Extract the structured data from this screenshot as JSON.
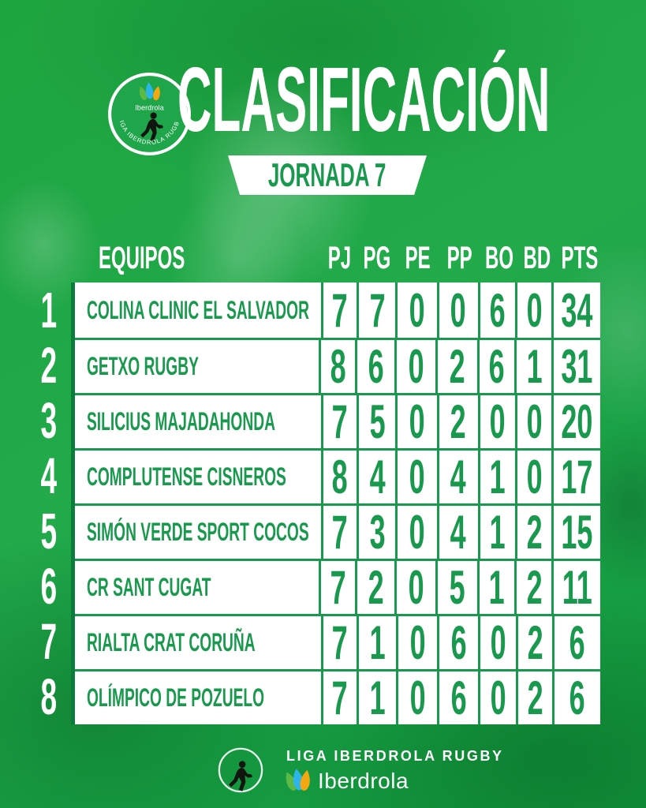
{
  "header": {
    "badge": {
      "icon": "iberdrola-league-badge-icon",
      "brand": "Iberdrola",
      "league": "LIGA IBERDROLA RUGBY"
    },
    "title": "CLASIFICACIÓN",
    "round": "JORNADA 7"
  },
  "chart_data": {
    "type": "table",
    "title": "CLASIFICACIÓN",
    "subtitle": "JORNADA 7",
    "columns": [
      "EQUIPOS",
      "PJ",
      "PG",
      "PE",
      "PP",
      "BO",
      "BD",
      "PTS"
    ],
    "rows": [
      {
        "rank": "1",
        "team": "COLINA CLINIC EL SALVADOR",
        "stats": [
          "7",
          "7",
          "0",
          "0",
          "6",
          "0",
          "34"
        ]
      },
      {
        "rank": "2",
        "team": "GETXO RUGBY",
        "stats": [
          "8",
          "6",
          "0",
          "2",
          "6",
          "1",
          "31"
        ]
      },
      {
        "rank": "3",
        "team": "SILICIUS MAJADAHONDA",
        "stats": [
          "7",
          "5",
          "0",
          "2",
          "0",
          "0",
          "20"
        ]
      },
      {
        "rank": "4",
        "team": "COMPLUTENSE CISNEROS",
        "stats": [
          "8",
          "4",
          "0",
          "4",
          "1",
          "0",
          "17"
        ]
      },
      {
        "rank": "5",
        "team": "SIMÓN VERDE SPORT COCOS",
        "stats": [
          "7",
          "3",
          "0",
          "4",
          "1",
          "2",
          "15"
        ]
      },
      {
        "rank": "6",
        "team": "CR SANT CUGAT",
        "stats": [
          "7",
          "2",
          "0",
          "5",
          "1",
          "2",
          "11"
        ]
      },
      {
        "rank": "7",
        "team": "RIALTA CRAT CORUÑA",
        "stats": [
          "7",
          "1",
          "0",
          "6",
          "0",
          "2",
          "6"
        ]
      },
      {
        "rank": "8",
        "team": "OLÍMPICO DE POZUELO",
        "stats": [
          "7",
          "1",
          "0",
          "6",
          "0",
          "2",
          "6"
        ]
      }
    ]
  },
  "footer": {
    "icon": "rugby-player-icon",
    "league": "LIGA IBERDROLA RUGBY",
    "brand": "Iberdrola"
  },
  "colors": {
    "background_green": "#1da545",
    "table_green": "#18994d",
    "dark_edge_green": "#0a7c3c",
    "droplet_green": "#5cb946",
    "droplet_blue": "#2cb5e8",
    "droplet_yellow": "#f3a712",
    "white": "#ffffff",
    "silhouette_black": "#10150f"
  }
}
